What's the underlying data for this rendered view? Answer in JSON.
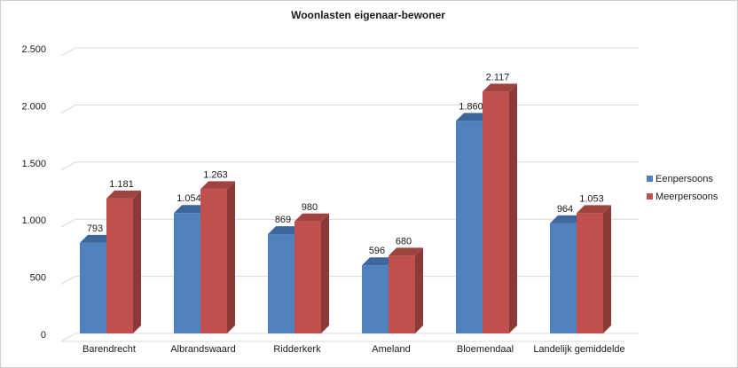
{
  "chart_data": {
    "type": "bar",
    "title": "Woonlasten eigenaar-bewoner",
    "xlabel": "",
    "ylabel": "",
    "categories": [
      "Barendrecht",
      "Albrandswaard",
      "Ridderkerk",
      "Ameland",
      "Bloemendaal",
      "Landelijk gemiddelde"
    ],
    "series": [
      {
        "name": "Eenpersoons",
        "values": [
          793,
          1054,
          869,
          596,
          1860,
          964
        ],
        "labels": [
          "793",
          "1.054",
          "869",
          "596",
          "1.860",
          "964"
        ],
        "color": "#4f81bd",
        "side_color": "#385d8a",
        "top_color": "#3d669b"
      },
      {
        "name": "Meerpersoons",
        "values": [
          1181,
          1263,
          980,
          680,
          2117,
          1053
        ],
        "labels": [
          "1.181",
          "1.263",
          "980",
          "680",
          "2.117",
          "1.053"
        ],
        "color": "#c0504d",
        "side_color": "#8c3a38",
        "top_color": "#9e4340"
      }
    ],
    "ylim": [
      0,
      2500
    ],
    "yticks": [
      0,
      500,
      1000,
      1500,
      2000,
      2500
    ],
    "ytick_labels": [
      "0",
      "500",
      "1.000",
      "1.500",
      "2.000",
      "2.500"
    ],
    "grid": true,
    "legend_position": "right",
    "bar_style": "3d"
  }
}
